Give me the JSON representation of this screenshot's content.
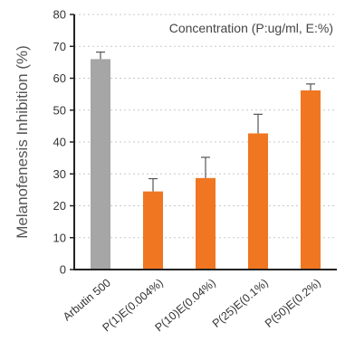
{
  "chart_data": {
    "type": "bar",
    "title": "",
    "xlabel": "",
    "ylabel": "Melanofenesis Inhibition (%)",
    "annotation": "Concentration (P:ug/ml, E:%)",
    "ylim": [
      0,
      80
    ],
    "yticks": [
      0,
      10,
      20,
      30,
      40,
      50,
      60,
      70,
      80
    ],
    "grid": "horizontal-dotted",
    "categories": [
      "Arbutin 500",
      "P(1)E(0.004%)",
      "P(10)E(0.04%)",
      "P(25)E(0.1%)",
      "P(50)E(0.2%)"
    ],
    "values": [
      66,
      24.5,
      28.7,
      42.7,
      56.2
    ],
    "errors": [
      2.2,
      4.0,
      6.5,
      6.0,
      2.0
    ],
    "colors": [
      "#a6a6a6",
      "#f07621",
      "#f07621",
      "#f07621",
      "#f07621"
    ]
  }
}
